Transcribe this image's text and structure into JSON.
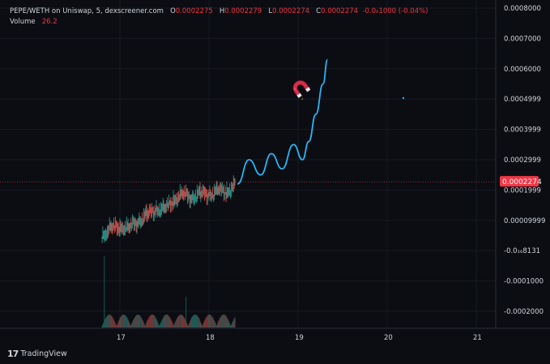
{
  "legend": {
    "symbol": "PEPE/WETH on Uniswap, 5, dexscreener.com",
    "open_key": "O",
    "open": "0.0002275",
    "high_key": "H",
    "high": "0.0002279",
    "low_key": "L",
    "low": "0.0002274",
    "close_key": "C",
    "close": "0.0002274",
    "change": "-0.0₈1000 (-0.04%)",
    "volume_label": "Volume",
    "volume_value": "26.2"
  },
  "price_axis": {
    "ticks": [
      "0.0008000",
      "0.0007000",
      "0.0006000",
      "0.0004999",
      "0.0003999",
      "0.0002999",
      "0.0001999",
      "0.00009999",
      "-0.0₁₆8131",
      "-0.0001000",
      "-0.0002000"
    ],
    "current_price": "0.0002274"
  },
  "time_axis": {
    "ticks": [
      "17",
      "18",
      "19",
      "20",
      "21"
    ]
  },
  "brand": {
    "logo": "17",
    "name": "TradingView"
  },
  "colors": {
    "background": "#0b0d12",
    "up": "#26a69a",
    "down": "#ef5350",
    "projection": "#29b6f6",
    "price_tag": "#f23645"
  },
  "icons": {
    "magnet": "magnet-icon"
  },
  "chart_data": {
    "type": "line",
    "title": "",
    "xlabel": "",
    "ylabel": "",
    "x_ticks": [
      "17",
      "18",
      "19",
      "20",
      "21"
    ],
    "ylim": [
      -0.0002,
      0.0008
    ],
    "series": [
      {
        "values": [
          [
            16.8,
            4e-05
          ],
          [
            16.9,
            8e-05
          ],
          [
            17.0,
            7e-05
          ],
          [
            17.1,
            8e-05
          ],
          [
            17.2,
            9e-05
          ],
          [
            17.3,
            0.00012
          ],
          [
            17.4,
            0.00013
          ],
          [
            17.5,
            0.00014
          ],
          [
            17.6,
            0.00016
          ],
          [
            17.7,
            0.00019
          ],
          [
            17.8,
            0.00017
          ],
          [
            17.9,
            0.00019
          ],
          [
            18.0,
            0.00018
          ],
          [
            18.1,
            0.0002
          ],
          [
            18.2,
            0.00019
          ],
          [
            18.3,
            0.00022
          ]
        ]
      },
      {
        "values": [
          [
            18.32,
            0.00022
          ],
          [
            18.45,
            0.0003
          ],
          [
            18.58,
            0.00025
          ],
          [
            18.7,
            0.00032
          ],
          [
            18.82,
            0.00027
          ],
          [
            18.95,
            0.00035
          ],
          [
            19.05,
            0.0003
          ],
          [
            19.12,
            0.00036
          ],
          [
            19.2,
            0.00045
          ],
          [
            19.28,
            0.00055
          ],
          [
            19.33,
            0.00063
          ]
        ]
      }
    ],
    "current_price": 0.0002274
  }
}
